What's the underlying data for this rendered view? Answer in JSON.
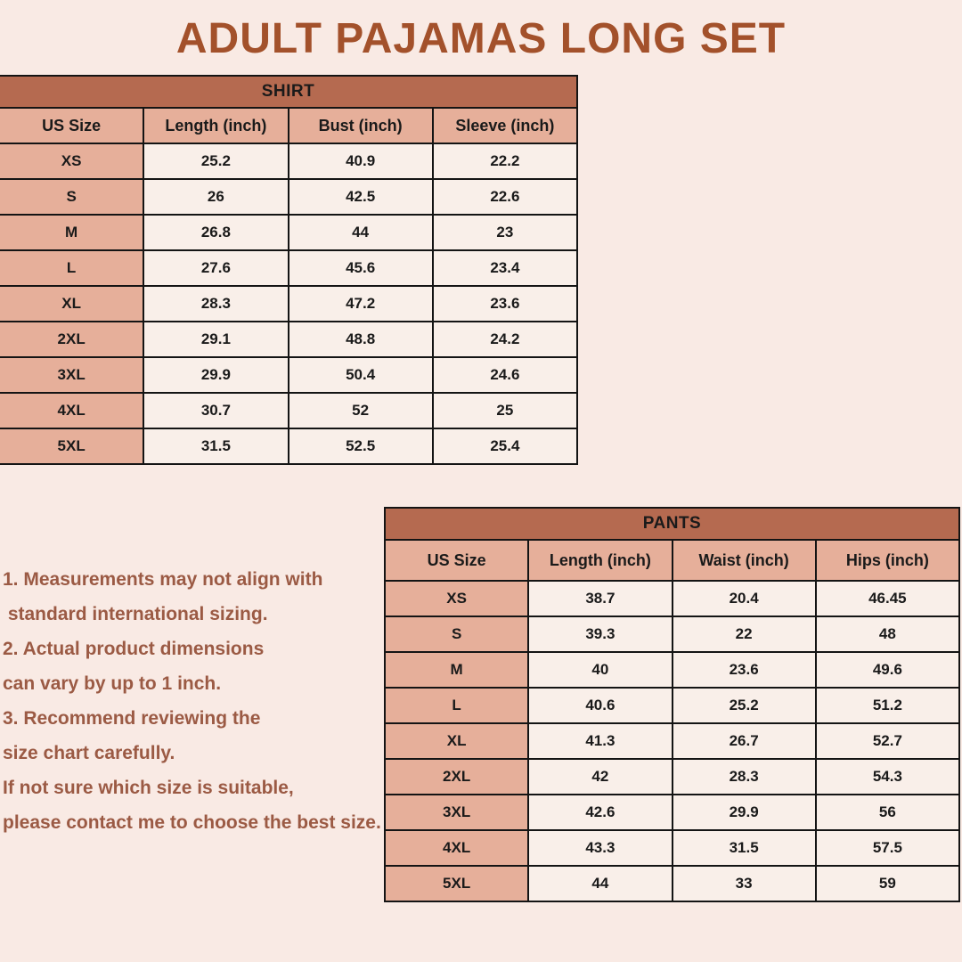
{
  "title": "ADULT PAJAMAS LONG SET",
  "colors": {
    "page_bg": "#F9EAE4",
    "title_text": "#A3512B",
    "header_bar_bg": "#B56A50",
    "pink_cell_bg": "#E6AF9A",
    "light_cell_bg": "#F9EFE9",
    "table_border": "#141414",
    "table_text": "#1A1A1A",
    "notes_text": "#9B5A44"
  },
  "shirt": {
    "title": "SHIRT",
    "columns": [
      "US Size",
      "Length (inch)",
      "Bust (inch)",
      "Sleeve (inch)"
    ],
    "rows": [
      [
        "XS",
        "25.2",
        "40.9",
        "22.2"
      ],
      [
        "S",
        "26",
        "42.5",
        "22.6"
      ],
      [
        "M",
        "26.8",
        "44",
        "23"
      ],
      [
        "L",
        "27.6",
        "45.6",
        "23.4"
      ],
      [
        "XL",
        "28.3",
        "47.2",
        "23.6"
      ],
      [
        "2XL",
        "29.1",
        "48.8",
        "24.2"
      ],
      [
        "3XL",
        "29.9",
        "50.4",
        "24.6"
      ],
      [
        "4XL",
        "30.7",
        "52",
        "25"
      ],
      [
        "5XL",
        "31.5",
        "52.5",
        "25.4"
      ]
    ]
  },
  "pants": {
    "title": "PANTS",
    "columns": [
      "US Size",
      "Length (inch)",
      "Waist (inch)",
      "Hips (inch)"
    ],
    "rows": [
      [
        "XS",
        "38.7",
        "20.4",
        "46.45"
      ],
      [
        "S",
        "39.3",
        "22",
        "48"
      ],
      [
        "M",
        "40",
        "23.6",
        "49.6"
      ],
      [
        "L",
        "40.6",
        "25.2",
        "51.2"
      ],
      [
        "XL",
        "41.3",
        "26.7",
        "52.7"
      ],
      [
        "2XL",
        "42",
        "28.3",
        "54.3"
      ],
      [
        "3XL",
        "42.6",
        "29.9",
        "56"
      ],
      [
        "4XL",
        "43.3",
        "31.5",
        "57.5"
      ],
      [
        "5XL",
        "44",
        "33",
        "59"
      ]
    ]
  },
  "notes": {
    "lines": [
      "1. Measurements may not align with",
      " standard international sizing.",
      "2. Actual product dimensions",
      "can vary by up to 1 inch.",
      "3. Recommend reviewing the",
      "size chart carefully.",
      "If not sure which size is suitable,",
      "please contact me to choose the best size."
    ]
  }
}
